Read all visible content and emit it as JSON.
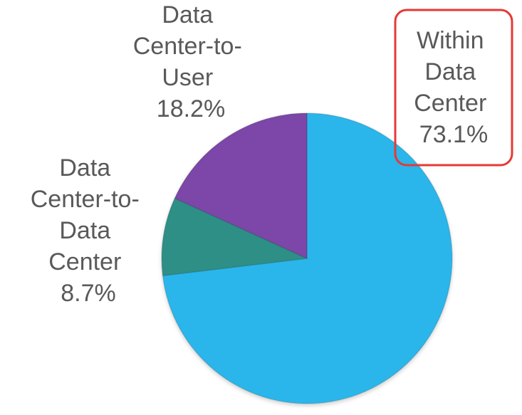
{
  "chart_data": {
    "type": "pie",
    "title": "",
    "start_angle_deg": 0,
    "direction": "clockwise",
    "slices": [
      {
        "key": "within-dc",
        "label_lines": [
          "Within",
          "Data",
          "Center",
          "73.1%"
        ],
        "value": 73.1,
        "color": "#2bb6ea",
        "highlighted": true
      },
      {
        "key": "dc-to-dc",
        "label_lines": [
          "Data",
          "Center-to-",
          "Data",
          "Center",
          "8.7%"
        ],
        "value": 8.7,
        "color": "#2f8f86"
      },
      {
        "key": "dc-to-user",
        "label_lines": [
          "Data",
          "Center-to-",
          "User",
          "18.2%"
        ],
        "value": 18.2,
        "color": "#7b46a8"
      }
    ],
    "highlight_color": "#e53935",
    "legend": "none"
  }
}
